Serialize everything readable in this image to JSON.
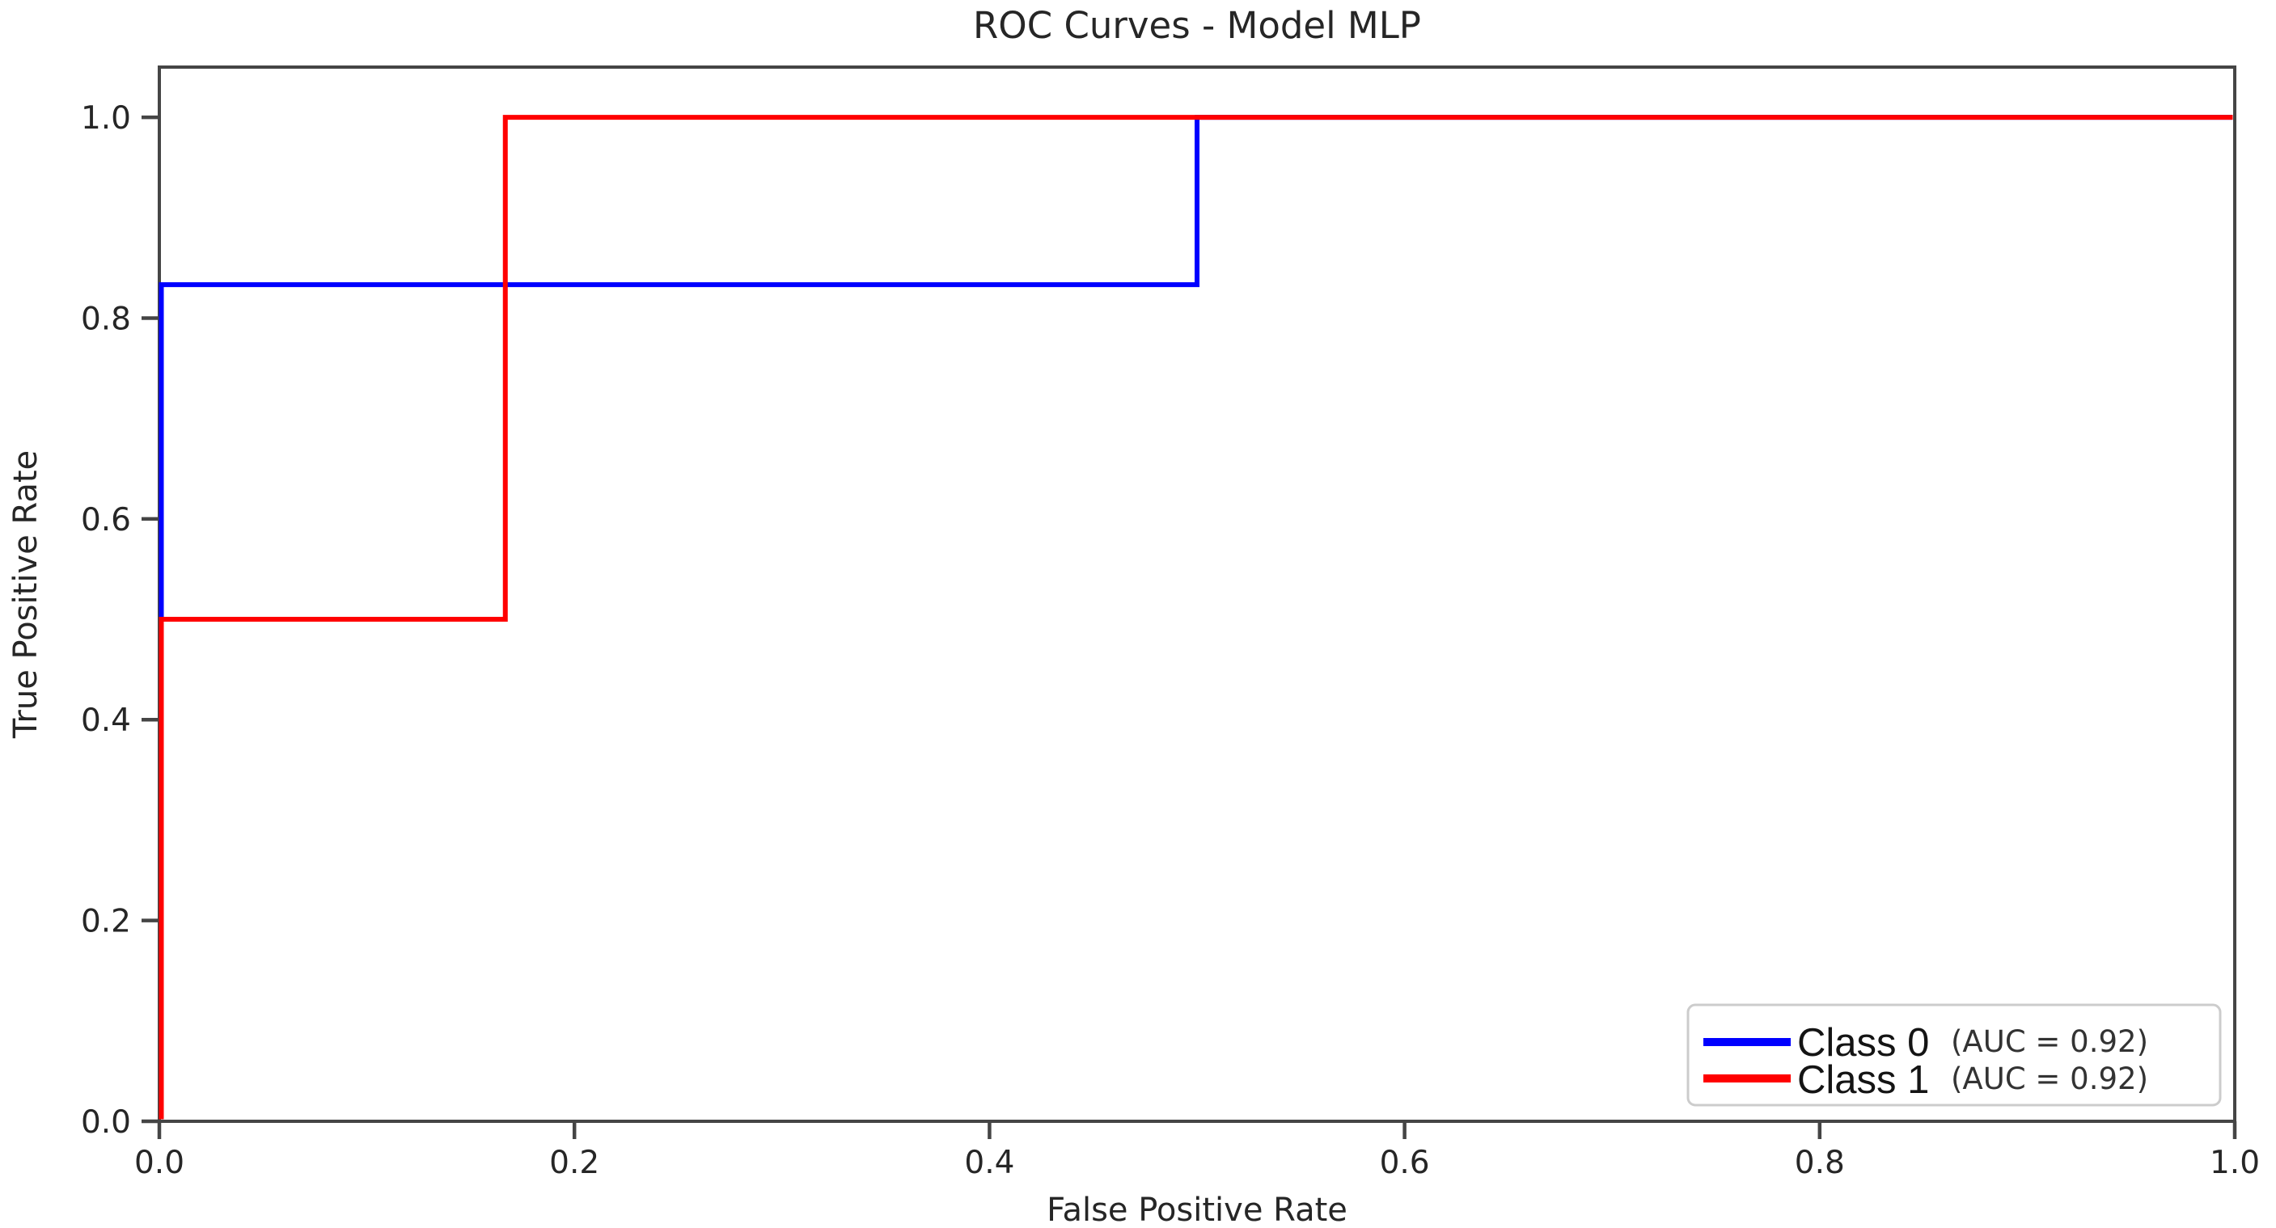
{
  "chart_data": {
    "type": "line",
    "title": "ROC Curves - Model MLP",
    "xlabel": "False Positive Rate",
    "ylabel": "True Positive Rate",
    "xlim": [
      0.0,
      1.0
    ],
    "ylim": [
      0.0,
      1.05
    ],
    "grid": false,
    "legend_position": "lower right",
    "axis_color": "#454545",
    "text_color": "#262626",
    "background_color": "#ffffff",
    "legend_border_color": "#cccccc",
    "x_ticks": [
      {
        "value": 0.0,
        "label": "0.0"
      },
      {
        "value": 0.2,
        "label": "0.2"
      },
      {
        "value": 0.4,
        "label": "0.4"
      },
      {
        "value": 0.6,
        "label": "0.6"
      },
      {
        "value": 0.8,
        "label": "0.8"
      },
      {
        "value": 1.0,
        "label": "1.0"
      }
    ],
    "y_ticks": [
      {
        "value": 0.0,
        "label": "0.0"
      },
      {
        "value": 0.2,
        "label": "0.2"
      },
      {
        "value": 0.4,
        "label": "0.4"
      },
      {
        "value": 0.6,
        "label": "0.6"
      },
      {
        "value": 0.8,
        "label": "0.8"
      },
      {
        "value": 1.0,
        "label": "1.0"
      }
    ],
    "series": [
      {
        "name": "Class 0",
        "color": "#0000ff",
        "auc": 0.92,
        "auc_label": "(AUC = 0.92)",
        "x": [
          0.0,
          0.0,
          0.5,
          0.5,
          1.0
        ],
        "y": [
          0.0,
          0.8333,
          0.8333,
          1.0,
          1.0
        ]
      },
      {
        "name": "Class 1",
        "color": "#ff0000",
        "auc": 0.92,
        "auc_label": "(AUC = 0.92)",
        "x": [
          0.0,
          0.0,
          0.1667,
          0.1667,
          1.0
        ],
        "y": [
          0.0,
          0.5,
          0.5,
          1.0,
          1.0
        ]
      }
    ]
  }
}
